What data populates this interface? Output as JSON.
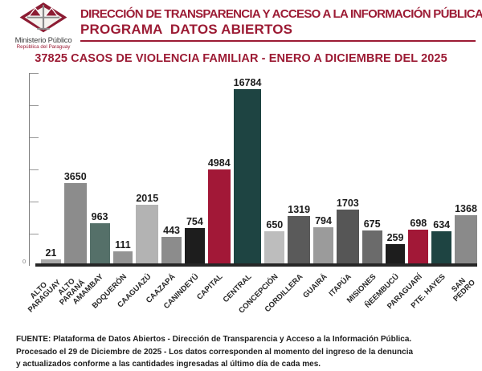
{
  "colors": {
    "accent": "#9c1b34",
    "logo_maroon": "#8c1c33",
    "logo_gray": "#8a8a8a",
    "baseline_dark": "#262626",
    "value_label_dark": "#1b1b1b"
  },
  "header": {
    "logo_org": "Ministerio Público",
    "logo_country": "República del Paraguay",
    "line1": "DIRECCIÓN DE TRANSPARENCIA Y ACCESO A LA INFORMACIÓN PÚBLICA",
    "line2": "PROGRAMA  DATOS ABIERTOS"
  },
  "title": "37825 CASOS DE VIOLENCIA FAMILIAR - ENERO A DICIEMBRE DEL 2025",
  "chart_data": {
    "type": "bar",
    "title": "37825 CASOS DE VIOLENCIA FAMILIAR - ENERO A DICIEMBRE DEL 2025",
    "total": 37825,
    "categories": [
      "ALTO PARAGUAY",
      "ALTO PARANÁ",
      "AMAMBAY",
      "BOQUERÓN",
      "CAAGUAZÚ",
      "CAAZAPÁ",
      "CANINDEYÚ",
      "CAPITAL",
      "CENTRAL",
      "CONCEPCIÓN",
      "CORDILLERA",
      "GUAIRÁ",
      "ITAPÚA",
      "MISIONES",
      "ÑEEMBUCÚ",
      "PARAGUARÍ",
      "PTE. HAYES",
      "SAN PEDRO"
    ],
    "tick_labels": [
      "ALTO\nPARAGUAY",
      "ALTO\nPARANÁ",
      "AMAMBAY",
      "BOQUERÓN",
      "CAAGUAZÚ",
      "CAAZAPÁ",
      "CANINDEYÚ",
      "CAPITAL",
      "CENTRAL",
      "CONCEPCIÓN",
      "CORDILLERA",
      "GUAIRÁ",
      "ITAPÚA",
      "MISIONES",
      "ÑEEMBUCÚ",
      "PARAGUARÍ",
      "PTE. HAYES",
      "SAN\nPEDRO"
    ],
    "values": [
      21,
      3650,
      963,
      111,
      2015,
      443,
      754,
      4984,
      16784,
      650,
      1319,
      794,
      1703,
      675,
      259,
      698,
      634,
      1368
    ],
    "bar_colors": [
      "#a9a9a9",
      "#8c8c8c",
      "#557069",
      "#949494",
      "#b3b3b3",
      "#8c8c8c",
      "#1d1d1d",
      "#a21837",
      "#1e4442",
      "#bdbdbd",
      "#5a5a5a",
      "#9b9b9b",
      "#565656",
      "#6b6b6b",
      "#1d1d1d",
      "#a21837",
      "#1e4442",
      "#8a8a8a"
    ],
    "y_axis": {
      "origin_label": "0",
      "tick_count": 6,
      "scale": "nonlinear-compressed"
    },
    "grid": false,
    "legend": false,
    "data_labels": true,
    "xlabel": "",
    "ylabel": ""
  },
  "footer": {
    "lines": [
      "FUENTE: Plataforma de Datos Abiertos - Dirección de Transparencia y Acceso a la Información Pública.",
      "Procesado el 29 de Diciembre de 2025 - Los datos corresponden al momento del ingreso de la denuncia",
      "y actualizados conforme a las cantidades ingresadas al último día de cada mes."
    ]
  }
}
